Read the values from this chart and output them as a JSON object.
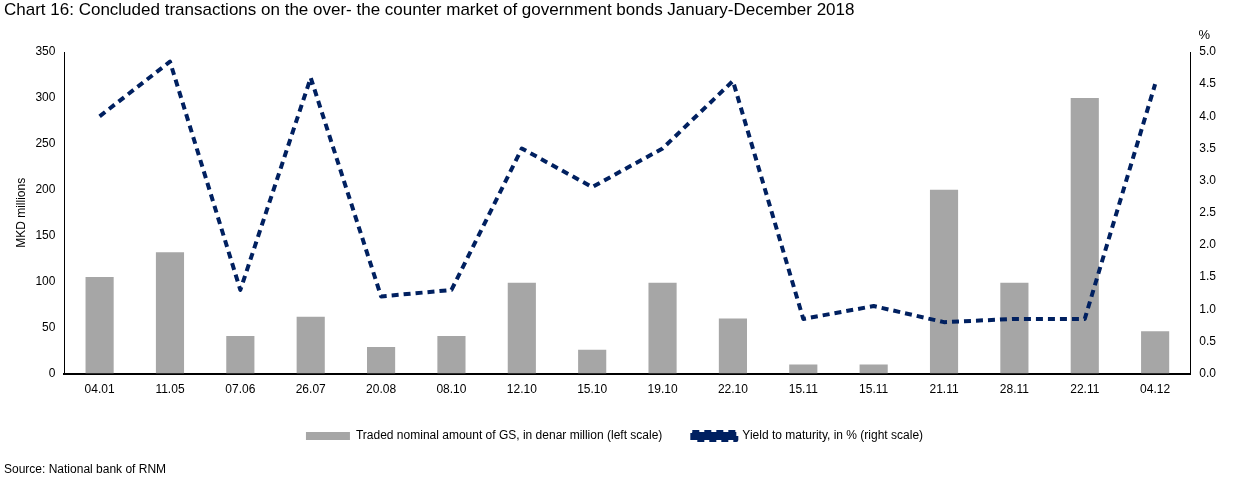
{
  "chart_data": {
    "type": "bar",
    "title": "Chart 16: Concluded transactions on the over- the counter market of government bonds January-December 2018",
    "ylabel": "MKD millions",
    "y2label": "%",
    "categories": [
      "04.01",
      "11.05",
      "07.06",
      "26.07",
      "20.08",
      "08.10",
      "12.10",
      "15.10",
      "19.10",
      "22.10",
      "15.11",
      "15.11",
      "21.11",
      "28.11",
      "22.11",
      "04.12"
    ],
    "series": [
      {
        "name": "Traded nominal amount of GS, in denar million (left scale)",
        "color": "#a6a6a6",
        "values": [
          105,
          132,
          41,
          62,
          29,
          41,
          99,
          26,
          99,
          60,
          10,
          10,
          200,
          99,
          300,
          46
        ]
      },
      {
        "name": "Yield to maturity, in % (right scale)",
        "type": "line",
        "axis": "y2",
        "color": "#002060",
        "line_style": "dashed",
        "values": [
          4.0,
          4.85,
          1.3,
          4.6,
          1.2,
          1.3,
          3.5,
          2.9,
          3.5,
          4.55,
          0.85,
          1.05,
          0.8,
          0.85,
          0.85,
          4.5
        ]
      }
    ],
    "ylim": [
      0,
      350
    ],
    "yticks": [
      0,
      50,
      100,
      150,
      200,
      250,
      300,
      350
    ],
    "y2lim": [
      0,
      5
    ],
    "y2ticks": [
      {
        "value": 0,
        "label": "0.0"
      },
      {
        "value": 0.5,
        "label": "0.5"
      },
      {
        "value": 1,
        "label": "1.0"
      },
      {
        "value": 1.5,
        "label": "1.5"
      },
      {
        "value": 2,
        "label": "2.0"
      },
      {
        "value": 2.5,
        "label": "2.5"
      },
      {
        "value": 3,
        "label": "3.0"
      },
      {
        "value": 3.5,
        "label": "3.5"
      },
      {
        "value": 4,
        "label": "4.0"
      },
      {
        "value": 4.5,
        "label": "4.5"
      },
      {
        "value": 5,
        "label": "5.0"
      }
    ],
    "grid": false,
    "legend": "bottom",
    "marker": "none",
    "annotations": [
      "Source: National bank of RNM"
    ]
  }
}
